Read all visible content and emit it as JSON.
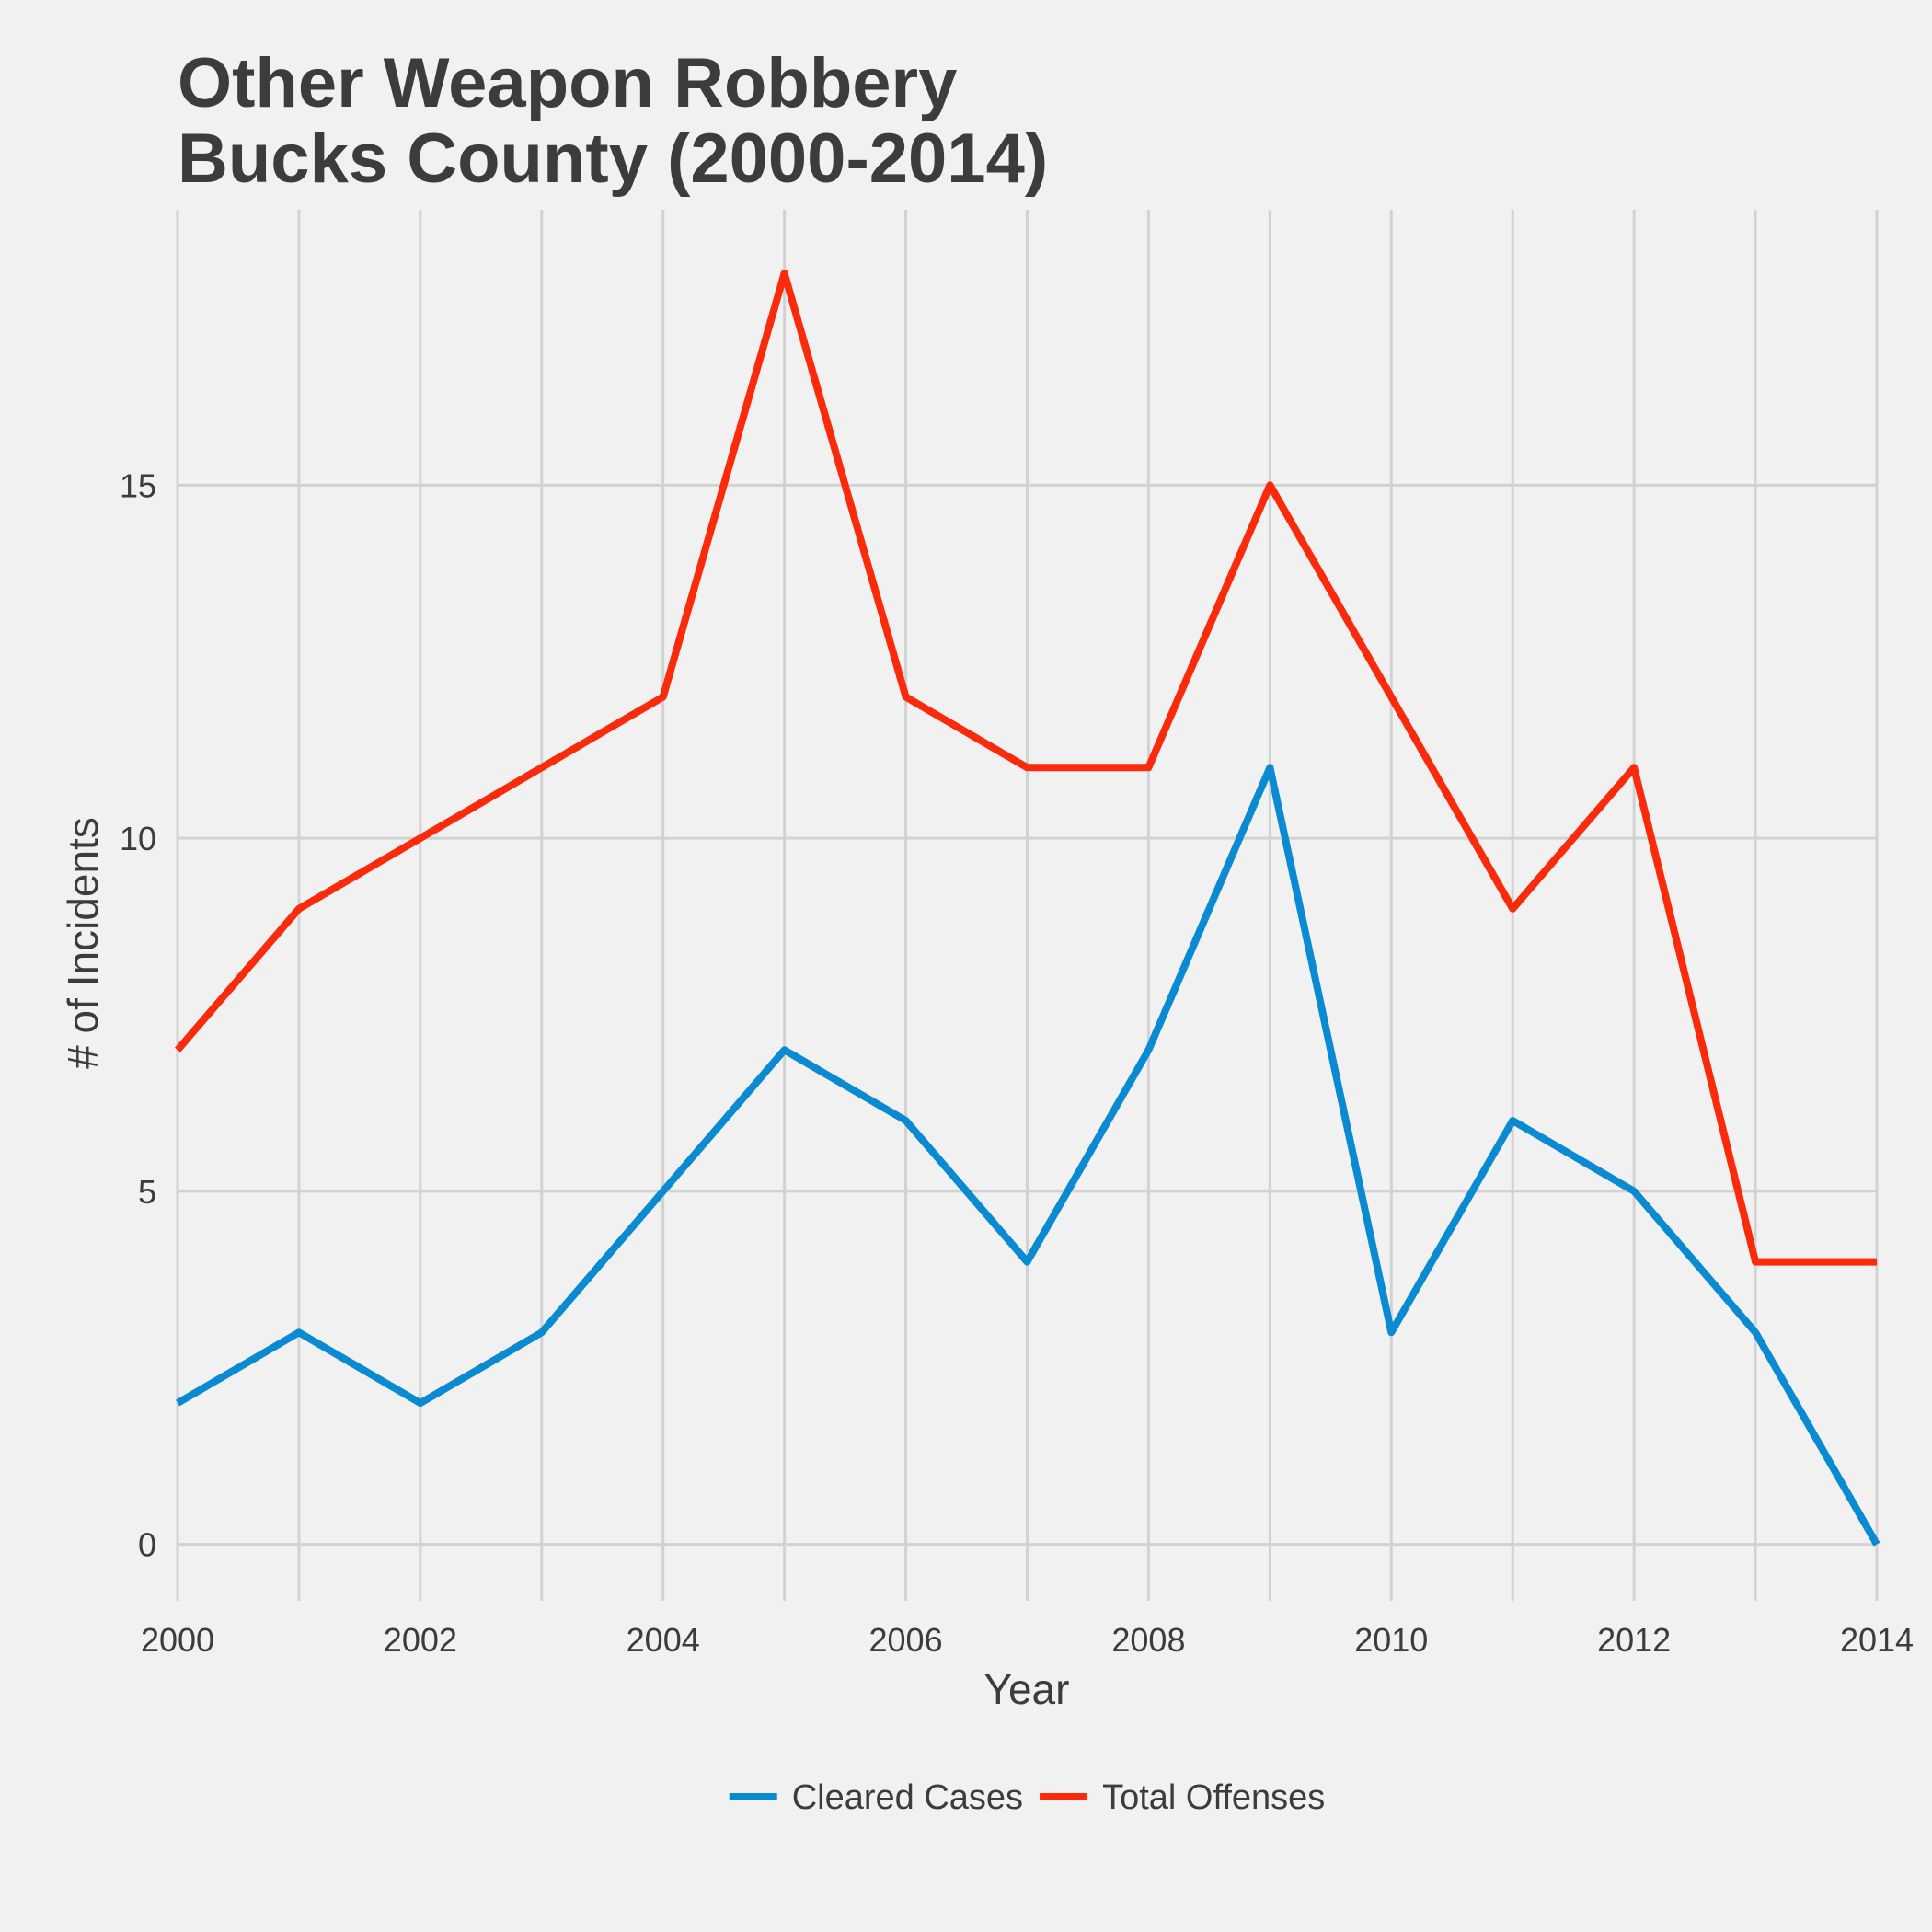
{
  "chart_data": {
    "type": "line",
    "title_lines": [
      "Other Weapon Robbery",
      "Bucks County (2000-2014)"
    ],
    "xlabel": "Year",
    "ylabel": "# of Incidents",
    "x": [
      2000,
      2001,
      2002,
      2003,
      2004,
      2005,
      2006,
      2007,
      2008,
      2009,
      2010,
      2011,
      2012,
      2013,
      2014
    ],
    "xlim": [
      2000,
      2014
    ],
    "ylim": [
      -0.8,
      18.9
    ],
    "x_ticks": [
      2000,
      2002,
      2004,
      2006,
      2008,
      2010,
      2012,
      2014
    ],
    "y_ticks": [
      0,
      5,
      10,
      15
    ],
    "grid": true,
    "legend_position": "bottom",
    "series": [
      {
        "name": "Cleared Cases",
        "color": "#0a8ad2",
        "values": [
          2,
          3,
          2,
          3,
          5,
          7,
          6,
          4,
          7,
          11,
          3,
          6,
          5,
          3,
          0
        ]
      },
      {
        "name": "Total Offenses",
        "color": "#fa2a0a",
        "values": [
          7,
          9,
          10,
          11,
          12,
          18,
          12,
          11,
          11,
          15,
          12,
          9,
          11,
          4,
          4
        ]
      }
    ]
  }
}
